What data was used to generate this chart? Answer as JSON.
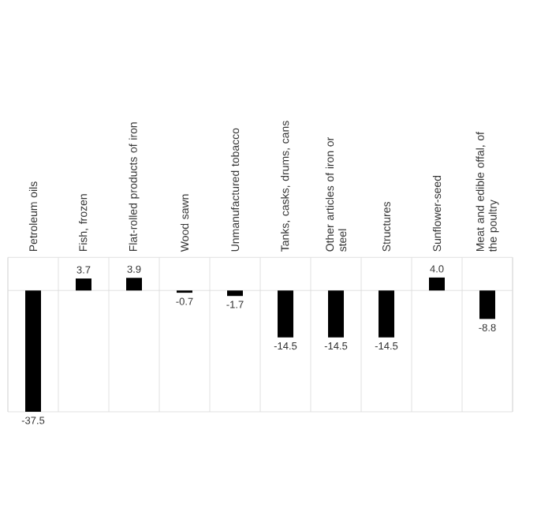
{
  "chart_data": {
    "type": "bar",
    "categories": [
      "Petroleum oils",
      "Fish, frozen",
      "Flat-rolled products of iron",
      "Wood sawn",
      "Unmanufactured tobacco",
      "Tanks, casks, drums, cans",
      "Other articles of iron or steel",
      "Structures",
      "Sunflower-seed",
      "Meat and edible offal, of the poultry"
    ],
    "values": [
      -37.5,
      3.7,
      3.9,
      -0.7,
      -1.7,
      -14.5,
      -14.5,
      -14.5,
      4.0,
      -8.8
    ],
    "value_labels": [
      "-37.5",
      "3.7",
      "3.9",
      "-0.7",
      "-1.7",
      "-14.5",
      "-14.5",
      "-14.5",
      "4.0",
      "-8.8"
    ],
    "color": "#000000",
    "grid": "x"
  }
}
